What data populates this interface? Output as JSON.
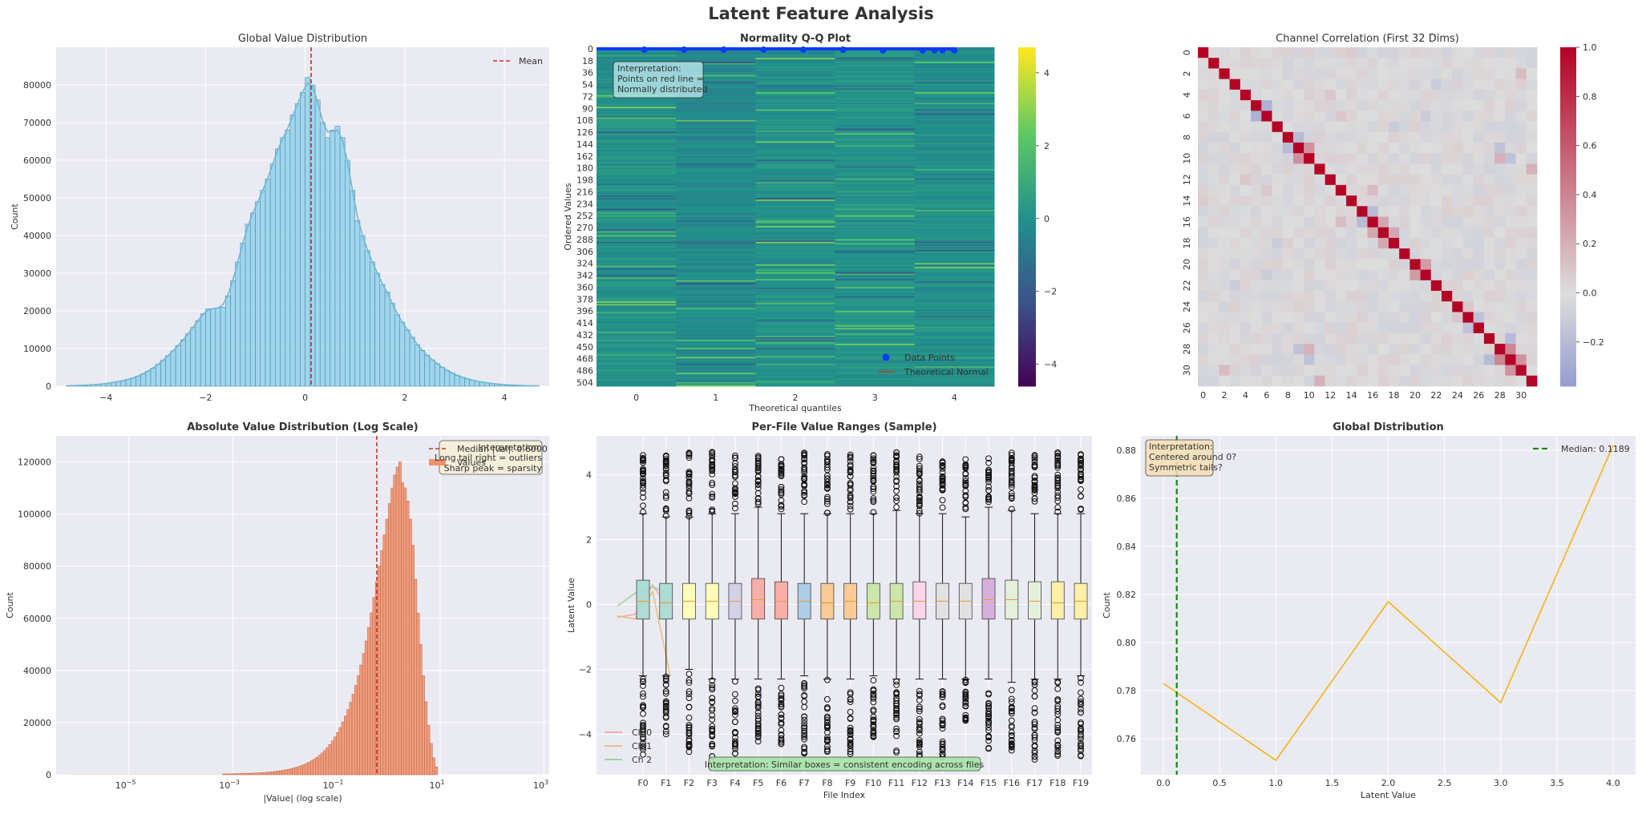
{
  "figure": {
    "title": "Latent Feature Analysis"
  },
  "chart_data": [
    {
      "id": "hist",
      "type": "bar",
      "title": "Global Value Distribution",
      "xlabel": "",
      "ylabel": "Count",
      "xlim": [
        -5.0,
        4.9
      ],
      "ylim": [
        0,
        90000
      ],
      "xticks": [
        -4,
        -2,
        0,
        2,
        4
      ],
      "yticks": [
        0,
        10000,
        20000,
        30000,
        40000,
        50000,
        60000,
        70000,
        80000
      ],
      "bin_width": 0.1,
      "bin_centers": [
        -4.75,
        -4.65,
        -4.55,
        -4.45,
        -4.35,
        -4.25,
        -4.15,
        -4.05,
        -3.95,
        -3.85,
        -3.75,
        -3.65,
        -3.55,
        -3.45,
        -3.35,
        -3.25,
        -3.15,
        -3.05,
        -2.95,
        -2.85,
        -2.75,
        -2.65,
        -2.55,
        -2.45,
        -2.35,
        -2.25,
        -2.15,
        -2.05,
        -1.95,
        -1.85,
        -1.75,
        -1.65,
        -1.55,
        -1.45,
        -1.35,
        -1.25,
        -1.15,
        -1.05,
        -0.95,
        -0.85,
        -0.75,
        -0.65,
        -0.55,
        -0.45,
        -0.35,
        -0.25,
        -0.15,
        -0.05,
        0.05,
        0.15,
        0.25,
        0.35,
        0.45,
        0.55,
        0.65,
        0.75,
        0.85,
        0.95,
        1.05,
        1.15,
        1.25,
        1.35,
        1.45,
        1.55,
        1.65,
        1.75,
        1.85,
        1.95,
        2.05,
        2.15,
        2.25,
        2.35,
        2.45,
        2.55,
        2.65,
        2.75,
        2.85,
        2.95,
        3.05,
        3.15,
        3.25,
        3.35,
        3.45,
        3.55,
        3.65,
        3.75,
        3.85,
        3.95,
        4.05,
        4.15,
        4.25,
        4.35,
        4.45,
        4.55,
        4.65
      ],
      "values": [
        100,
        150,
        200,
        250,
        300,
        400,
        500,
        600,
        800,
        1000,
        1200,
        1500,
        1800,
        2200,
        2700,
        3300,
        4000,
        4800,
        5800,
        6900,
        8100,
        9400,
        10800,
        12300,
        13900,
        15600,
        17400,
        19200,
        20500,
        20600,
        20700,
        21000,
        24000,
        28000,
        33000,
        38000,
        43000,
        46000,
        49000,
        52000,
        55000,
        59000,
        63000,
        66000,
        68000,
        72000,
        75000,
        78000,
        82000,
        80000,
        76000,
        70000,
        66000,
        68000,
        69000,
        66000,
        60000,
        52000,
        44000,
        40000,
        36000,
        33000,
        30000,
        27000,
        25000,
        22000,
        19000,
        17000,
        15000,
        13000,
        11000,
        9500,
        8200,
        7000,
        6000,
        5000,
        4200,
        3500,
        2900,
        2400,
        2000,
        1600,
        1300,
        1100,
        900,
        700,
        550,
        450,
        350,
        280,
        220,
        170,
        130,
        100,
        80
      ],
      "kde_line": true,
      "mean": 0.12,
      "legend": [
        {
          "name": "Mean",
          "color": "#d62728"
        }
      ],
      "legend_position": "top-right",
      "bar_color": "#87ceeb",
      "bar_edge_color": "#4a90a4",
      "grid": true
    },
    {
      "id": "qq",
      "type": "heatmap",
      "title": "Normality Q-Q Plot",
      "xlabel": "Theoretical quantiles",
      "ylabel": "Ordered Values",
      "xticks": [
        0,
        1,
        2,
        3,
        4
      ],
      "yticks": [
        0,
        18,
        36,
        54,
        72,
        90,
        108,
        126,
        144,
        162,
        180,
        198,
        216,
        234,
        252,
        270,
        288,
        306,
        324,
        342,
        360,
        378,
        396,
        414,
        432,
        450,
        468,
        486,
        504
      ],
      "n_rows": 512,
      "n_cols": 5,
      "colorbar": {
        "range": [
          -4.6,
          4.7
        ],
        "ticks": [
          -4,
          -2,
          0,
          2,
          4
        ],
        "colormap": "viridis"
      },
      "data_points": [
        [
          0,
          0
        ],
        [
          0.5,
          0
        ],
        [
          1,
          0
        ],
        [
          1.5,
          0
        ],
        [
          2,
          0
        ],
        [
          2.5,
          0
        ],
        [
          3,
          1
        ],
        [
          3.5,
          1
        ],
        [
          3.65,
          1
        ],
        [
          3.75,
          1
        ],
        [
          3.9,
          1
        ]
      ],
      "annotation": "Interpretation:\nPoints on red line =\nNormally distributed",
      "legend": [
        {
          "name": "Data Points",
          "color": "#0b3df0"
        },
        {
          "name": "Theoretical Normal",
          "color": "#c0392b"
        }
      ],
      "legend_position": "bottom-right"
    },
    {
      "id": "corr",
      "type": "heatmap",
      "title": "Channel Correlation (First 32 Dims)",
      "n": 32,
      "ticks": [
        0,
        2,
        4,
        6,
        8,
        10,
        12,
        14,
        16,
        18,
        20,
        22,
        24,
        26,
        28,
        30
      ],
      "colorbar": {
        "range": [
          -0.38,
          1.0
        ],
        "ticks": [
          1.0,
          0.8,
          0.6,
          0.4,
          0.2,
          0.0,
          -0.2
        ],
        "colormap": "coolwarm"
      },
      "notable_correlations": [
        [
          5,
          6,
          -0.25
        ],
        [
          8,
          9,
          -0.2
        ],
        [
          9,
          10,
          0.35
        ],
        [
          28,
          29,
          0.4
        ],
        [
          27,
          29,
          -0.2
        ],
        [
          10,
          28,
          0.2
        ],
        [
          10,
          29,
          -0.15
        ],
        [
          15,
          16,
          -0.2
        ],
        [
          16,
          17,
          0.25
        ],
        [
          17,
          18,
          0.25
        ],
        [
          13,
          16,
          0.15
        ],
        [
          20,
          21,
          0.3
        ],
        [
          3,
          22,
          -0.1
        ],
        [
          6,
          21,
          -0.1
        ],
        [
          4,
          12,
          0.1
        ],
        [
          29,
          30,
          0.35
        ],
        [
          28,
          9,
          -0.15
        ],
        [
          2,
          30,
          0.15
        ],
        [
          11,
          31,
          0.2
        ],
        [
          6,
          13,
          0.1
        ],
        [
          7,
          18,
          -0.1
        ],
        [
          12,
          20,
          0.05
        ],
        [
          25,
          26,
          -0.15
        ],
        [
          24,
          25,
          0.1
        ],
        [
          0,
          14,
          0.08
        ]
      ]
    },
    {
      "id": "abs",
      "type": "bar",
      "title": "Absolute Value Distribution (Log Scale)",
      "xlabel": "|Value| (log scale)",
      "ylabel": "Count",
      "xscale": "log",
      "xlim": [
        -6.4,
        3.1
      ],
      "ylim": [
        0,
        130000
      ],
      "xticks": [
        -5,
        -3,
        -1,
        1,
        3
      ],
      "yticks": [
        0,
        20000,
        40000,
        60000,
        80000,
        100000,
        120000
      ],
      "bin_width_log10": 0.05,
      "nonzero_from_log10": -6.2,
      "bins_from_log10": -3.2,
      "values": [
        300,
        320,
        340,
        360,
        380,
        400,
        430,
        460,
        490,
        520,
        560,
        600,
        650,
        700,
        760,
        820,
        890,
        970,
        1060,
        1160,
        1270,
        1400,
        1540,
        1700,
        1880,
        2080,
        2300,
        2550,
        2830,
        3140,
        3490,
        3880,
        4320,
        4810,
        5360,
        5980,
        6670,
        7450,
        8320,
        9300,
        10400,
        11600,
        13000,
        14500,
        16200,
        18100,
        20200,
        22500,
        25000,
        27800,
        30900,
        34300,
        38000,
        42100,
        46500,
        51300,
        56500,
        62100,
        68000,
        74000,
        80000,
        86000,
        92000,
        98000,
        104000,
        110000,
        115000,
        118000,
        120000,
        112000,
        110000,
        105000,
        98000,
        88000,
        75000,
        62000,
        50000,
        38000,
        28000,
        19000,
        12000,
        6500,
        3000
      ],
      "median": 0.6,
      "legend": [
        {
          "name": "Median |val|: 0.6000",
          "color": "#c0392b"
        },
        {
          "name": "Values",
          "color": "#f0906c"
        }
      ],
      "legend_position": "top-right",
      "annotation": "Interpretation:\nLong tail right = outliers\nSharp peak = sparsity",
      "bar_color": "#f0906c",
      "bar_edge_color": "#c06040",
      "grid": true
    },
    {
      "id": "box",
      "type": "box",
      "title": "Per-File Value Ranges (Sample)",
      "xlabel": "File Index",
      "ylabel": "Latent Value",
      "ylim": [
        -5.25,
        5.2
      ],
      "yticks": [
        -4,
        -2,
        0,
        2,
        4
      ],
      "categories": [
        "F0",
        "F1",
        "F2",
        "F3",
        "F4",
        "F5",
        "F6",
        "F7",
        "F8",
        "F9",
        "F10",
        "F11",
        "F12",
        "F13",
        "F14",
        "F15",
        "F16",
        "F17",
        "F18",
        "F19"
      ],
      "q1": [
        -0.45,
        -0.45,
        -0.45,
        -0.45,
        -0.45,
        -0.45,
        -0.45,
        -0.45,
        -0.45,
        -0.45,
        -0.45,
        -0.45,
        -0.45,
        -0.45,
        -0.45,
        -0.45,
        -0.45,
        -0.45,
        -0.45,
        -0.45
      ],
      "median": [
        0.1,
        0.05,
        0.1,
        0.1,
        0.1,
        0.15,
        0.1,
        0.1,
        0.05,
        0.1,
        0.05,
        0.1,
        0.1,
        0.1,
        0.1,
        0.15,
        0.15,
        0.1,
        0.05,
        0.1
      ],
      "q3": [
        0.75,
        0.65,
        0.65,
        0.65,
        0.65,
        0.8,
        0.7,
        0.65,
        0.65,
        0.65,
        0.65,
        0.65,
        0.7,
        0.65,
        0.65,
        0.8,
        0.75,
        0.7,
        0.7,
        0.65
      ],
      "whisker_low": [
        -2.2,
        -2.2,
        -2.0,
        -2.3,
        -2.3,
        -2.3,
        -2.3,
        -2.2,
        -2.3,
        -2.3,
        -2.2,
        -2.3,
        -2.3,
        -2.3,
        -2.3,
        -2.3,
        -2.4,
        -2.3,
        -2.3,
        -2.2
      ],
      "whisker_high": [
        2.8,
        2.7,
        2.7,
        2.8,
        2.8,
        3.0,
        2.8,
        2.8,
        2.8,
        2.8,
        2.8,
        2.9,
        2.8,
        2.8,
        2.7,
        3.0,
        2.9,
        2.8,
        2.8,
        2.8
      ],
      "flier_max": [
        4.6,
        4.6,
        4.7,
        4.7,
        4.6,
        4.6,
        4.5,
        4.7,
        4.7,
        4.7,
        4.6,
        4.7,
        4.7,
        4.6,
        4.5,
        4.6,
        4.7,
        4.7,
        4.7,
        4.7
      ],
      "flier_min": [
        -4.7,
        -4.0,
        -4.6,
        -4.7,
        -4.6,
        -4.4,
        -4.5,
        -4.6,
        -4.6,
        -4.7,
        -4.1,
        -4.6,
        -4.7,
        -4.7,
        -3.6,
        -4.5,
        -4.6,
        -4.8,
        -4.7,
        -4.7
      ],
      "box_colors": [
        "#a6dcd0",
        "#a6dcd0",
        "#ffffb3",
        "#ffffb3",
        "#d0cde6",
        "#f8a7a0",
        "#f8a7a0",
        "#a7c9e6",
        "#fbc58c",
        "#fbc58c",
        "#c8e6a0",
        "#c8e6a0",
        "#fbd3e9",
        "#e0e0e0",
        "#e0e0e0",
        "#d4a8d8",
        "#e4f1d8",
        "#e4f1d8",
        "#fff0a0",
        "#fff0a0"
      ],
      "channel_lines": [
        {
          "name": "Ch 0",
          "color": "#f4a0a0",
          "values": [
            -0.4,
            -0.3,
            0.6,
            -0.2
          ]
        },
        {
          "name": "Ch 1",
          "color": "#e6b870",
          "values": [
            -0.35,
            -0.45,
            0.4,
            -2.2
          ]
        },
        {
          "name": "Ch 2",
          "color": "#90d090",
          "values": [
            -0.05,
            0.35,
            0.55,
            0.3
          ]
        }
      ],
      "legend_position": "bottom-left",
      "annotation": "Interpretation: Similar boxes = consistent encoding across files"
    },
    {
      "id": "global",
      "type": "line",
      "title": "Global Distribution",
      "xlabel": "Latent Value",
      "ylabel": "Count",
      "x": [
        0,
        1,
        2,
        3,
        4
      ],
      "y": [
        0.783,
        0.751,
        0.817,
        0.775,
        0.882
      ],
      "xlim": [
        -0.2,
        4.2
      ],
      "ylim": [
        0.745,
        0.886
      ],
      "xticks": [
        0.0,
        0.5,
        1.0,
        1.5,
        2.0,
        2.5,
        3.0,
        3.5,
        4.0
      ],
      "yticks": [
        0.76,
        0.78,
        0.8,
        0.82,
        0.84,
        0.86,
        0.88
      ],
      "median": 0.1189,
      "line_color": "#f5b21a",
      "legend": [
        {
          "name": "Median: 0.1189",
          "color": "#138a13"
        }
      ],
      "legend_position": "top-right",
      "annotation": "Interpretation:\nCentered around 0?\nSymmetric tails?"
    }
  ]
}
